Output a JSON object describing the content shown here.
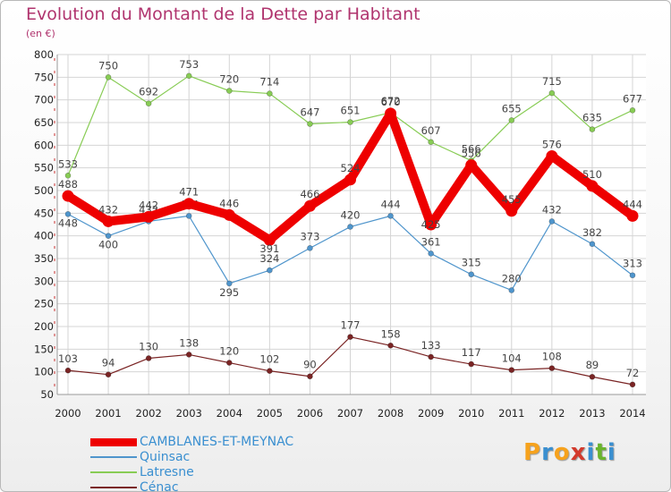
{
  "title": "Evolution du Montant de la Dette par Habitant",
  "unit": "(en €)",
  "logo": "Proxiti",
  "logo_colors": [
    "#f6a21d",
    "#3a8fd0",
    "#f6a21d",
    "#d33a2c",
    "#3a8fd0",
    "#6ab42d",
    "#3a8fd0"
  ],
  "chart_data": {
    "type": "line",
    "title": "Evolution du Montant de la Dette par Habitant",
    "subtitle": "(en €)",
    "xlabel": "",
    "ylabel": "",
    "x": [
      "2000",
      "2001",
      "2002",
      "2003",
      "2004",
      "2005",
      "2006",
      "2007",
      "2008",
      "2009",
      "2010",
      "2011",
      "2012",
      "2013",
      "2014"
    ],
    "ylim": [
      50,
      800
    ],
    "yticks": [
      50,
      100,
      150,
      200,
      250,
      300,
      350,
      400,
      450,
      500,
      550,
      600,
      650,
      700,
      750,
      800
    ],
    "grid": true,
    "legend": "bottom-left",
    "series": [
      {
        "name": "CAMBLANES-ET-MEYNAC",
        "color": "#ee0000",
        "values": [
          488,
          432,
          442,
          471,
          446,
          391,
          466,
          524,
          670,
          425,
          556,
          455,
          576,
          510,
          444
        ]
      },
      {
        "name": "Quinsac",
        "color": "#4f95cc",
        "values": [
          448,
          400,
          432,
          444,
          295,
          324,
          373,
          420,
          444,
          361,
          315,
          280,
          432,
          382,
          313
        ]
      },
      {
        "name": "Latresne",
        "color": "#88cc55",
        "values": [
          533,
          750,
          692,
          753,
          720,
          714,
          647,
          651,
          672,
          607,
          566,
          655,
          715,
          635,
          677
        ]
      },
      {
        "name": "Cénac",
        "color": "#7a2424",
        "values": [
          103,
          94,
          130,
          138,
          120,
          102,
          90,
          177,
          158,
          133,
          117,
          104,
          108,
          89,
          72
        ]
      }
    ]
  }
}
